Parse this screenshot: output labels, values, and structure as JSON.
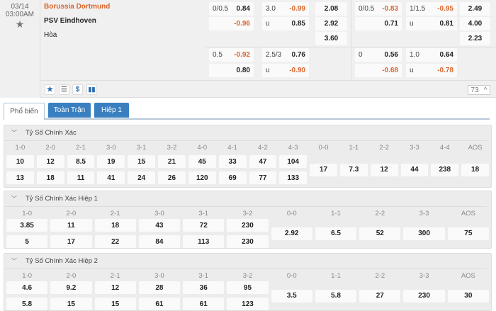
{
  "match": {
    "date": "03/14",
    "time": "03:00AM",
    "home": "Borussia Dortmund",
    "away": "PSV Eindhoven",
    "draw": "Hòa"
  },
  "odds": {
    "g1_r1": [
      {
        "l": "0/0.5",
        "v": "0.84"
      },
      {
        "l": "3.0",
        "v": "-0.99"
      },
      {
        "l": "",
        "v": "2.08"
      }
    ],
    "g1_r2": [
      {
        "l": "",
        "v": "-0.96"
      },
      {
        "l": "u",
        "v": "0.85"
      },
      {
        "l": "",
        "v": "2.92"
      }
    ],
    "g1_r3": [
      {
        "l": "",
        "v": "3.60"
      }
    ],
    "g1_r4": [
      {
        "l": "0.5",
        "v": "-0.92"
      },
      {
        "l": "2.5/3",
        "v": "0.76"
      }
    ],
    "g1_r5": [
      {
        "l": "",
        "v": "0.80"
      },
      {
        "l": "u",
        "v": "-0.90"
      }
    ],
    "g2_r1": [
      {
        "l": "0/0.5",
        "v": "-0.83"
      },
      {
        "l": "1/1.5",
        "v": "-0.95"
      },
      {
        "l": "",
        "v": "2.49"
      }
    ],
    "g2_r2": [
      {
        "l": "",
        "v": "0.71"
      },
      {
        "l": "u",
        "v": "0.81"
      },
      {
        "l": "",
        "v": "4.00"
      }
    ],
    "g2_r3": [
      {
        "l": "",
        "v": "2.23"
      }
    ],
    "g2_r4": [
      {
        "l": "0",
        "v": "0.56"
      },
      {
        "l": "1.0",
        "v": "0.64"
      }
    ],
    "g2_r5": [
      {
        "l": "",
        "v": "-0.68"
      },
      {
        "l": "u",
        "v": "-0.78"
      }
    ]
  },
  "actions": {
    "icons": [
      "star-icon",
      "list-icon",
      "dollar-icon",
      "chart-icon"
    ],
    "count": "73"
  },
  "tabs": [
    {
      "label": "Phổ biến",
      "active": true
    },
    {
      "label": "Toàn Trận"
    },
    {
      "label": "Hiệp 1"
    }
  ],
  "colors": {
    "accent": "#3a7fc0",
    "negative": "#d9652b"
  },
  "sections": [
    {
      "title": "Tỷ Số Chính Xác",
      "columns": [
        {
          "label": "1-0",
          "values": [
            "10",
            "13"
          ]
        },
        {
          "label": "2-0",
          "values": [
            "12",
            "18"
          ]
        },
        {
          "label": "2-1",
          "values": [
            "8.5",
            "11"
          ]
        },
        {
          "label": "3-0",
          "values": [
            "19",
            "41"
          ]
        },
        {
          "label": "3-1",
          "values": [
            "15",
            "24"
          ]
        },
        {
          "label": "3-2",
          "values": [
            "21",
            "26"
          ]
        },
        {
          "label": "4-0",
          "values": [
            "45",
            "120"
          ]
        },
        {
          "label": "4-1",
          "values": [
            "33",
            "69"
          ]
        },
        {
          "label": "4-2",
          "values": [
            "47",
            "77"
          ]
        },
        {
          "label": "4-3",
          "values": [
            "104",
            "133"
          ]
        },
        {
          "label": "0-0",
          "values": [
            "17"
          ]
        },
        {
          "label": "1-1",
          "values": [
            "7.3"
          ]
        },
        {
          "label": "2-2",
          "values": [
            "12"
          ]
        },
        {
          "label": "3-3",
          "values": [
            "44"
          ]
        },
        {
          "label": "4-4",
          "values": [
            "238"
          ]
        },
        {
          "label": "AOS",
          "values": [
            "18"
          ]
        }
      ]
    },
    {
      "title": "Tỷ Số Chính Xác Hiệp 1",
      "columns": [
        {
          "label": "1-0",
          "values": [
            "3.85",
            "5"
          ]
        },
        {
          "label": "2-0",
          "values": [
            "11",
            "17"
          ]
        },
        {
          "label": "2-1",
          "values": [
            "18",
            "22"
          ]
        },
        {
          "label": "3-0",
          "values": [
            "43",
            "84"
          ]
        },
        {
          "label": "3-1",
          "values": [
            "72",
            "113"
          ]
        },
        {
          "label": "3-2",
          "values": [
            "230",
            "230"
          ]
        },
        {
          "label": "0-0",
          "values": [
            "2.92"
          ]
        },
        {
          "label": "1-1",
          "values": [
            "6.5"
          ]
        },
        {
          "label": "2-2",
          "values": [
            "52"
          ]
        },
        {
          "label": "3-3",
          "values": [
            "300"
          ]
        },
        {
          "label": "AOS",
          "values": [
            "75"
          ]
        }
      ]
    },
    {
      "title": "Tỷ Số Chính Xác Hiệp 2",
      "columns": [
        {
          "label": "1-0",
          "values": [
            "4.6",
            "5.8"
          ]
        },
        {
          "label": "2-0",
          "values": [
            "9.2",
            "15"
          ]
        },
        {
          "label": "2-1",
          "values": [
            "12",
            "15"
          ]
        },
        {
          "label": "3-0",
          "values": [
            "28",
            "61"
          ]
        },
        {
          "label": "3-1",
          "values": [
            "36",
            "61"
          ]
        },
        {
          "label": "3-2",
          "values": [
            "95",
            "123"
          ]
        },
        {
          "label": "0-0",
          "values": [
            "3.5"
          ]
        },
        {
          "label": "1-1",
          "values": [
            "5.8"
          ]
        },
        {
          "label": "2-2",
          "values": [
            "27"
          ]
        },
        {
          "label": "3-3",
          "values": [
            "230"
          ]
        },
        {
          "label": "AOS",
          "values": [
            "30"
          ]
        }
      ]
    }
  ]
}
